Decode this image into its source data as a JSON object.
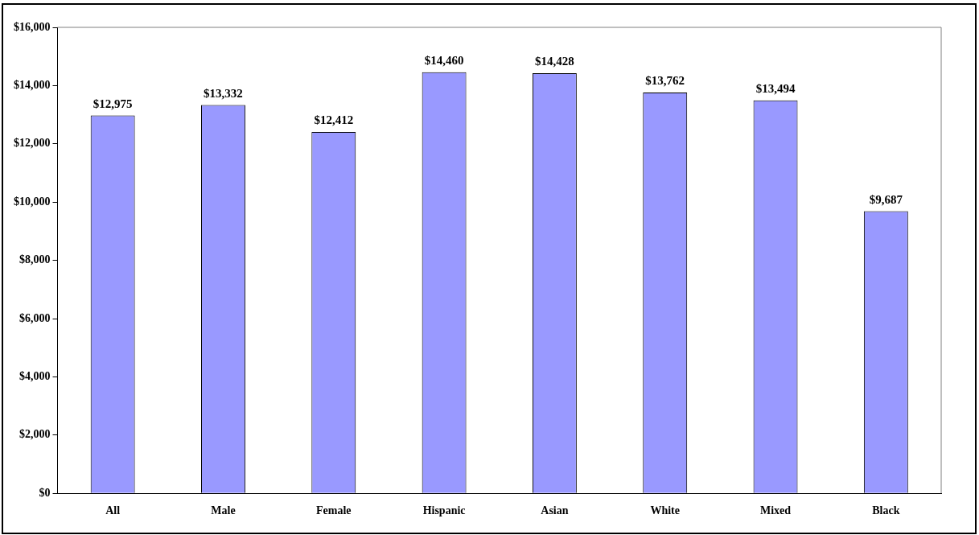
{
  "chart_data": {
    "type": "bar",
    "categories": [
      "All",
      "Male",
      "Female",
      "Hispanic",
      "Asian",
      "White",
      "Mixed",
      "Black"
    ],
    "values": [
      12975,
      13332,
      12412,
      14460,
      14428,
      13762,
      13494,
      9687
    ],
    "color": "#9999ff",
    "value_labels": [
      "$12,975",
      "$13,332",
      "$12,412",
      "$14,460",
      "$14,428",
      "$13,762",
      "$13,494",
      "$9,687"
    ],
    "ylim": [
      0,
      16000
    ],
    "yticks": [
      {
        "value": 0,
        "label": "$0"
      },
      {
        "value": 2000,
        "label": "$2,000"
      },
      {
        "value": 4000,
        "label": "$4,000"
      },
      {
        "value": 6000,
        "label": "$6,000"
      },
      {
        "value": 8000,
        "label": "$8,000"
      },
      {
        "value": 10000,
        "label": "$10,000"
      },
      {
        "value": 12000,
        "label": "$12,000"
      },
      {
        "value": 14000,
        "label": "$14,000"
      },
      {
        "value": 16000,
        "label": "$16,000"
      }
    ],
    "grid": false,
    "legend": false
  }
}
